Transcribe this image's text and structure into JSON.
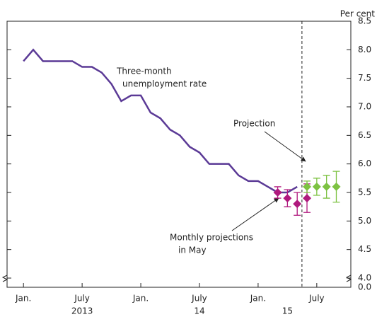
{
  "chart_data": {
    "type": "line",
    "y_axis_label": "Per cent",
    "xlim": [
      "2012-11-11",
      "2015-10-16"
    ],
    "ylim": [
      4.0,
      8.5
    ],
    "yticks": [
      {
        "value": 0,
        "label": "0.0"
      },
      {
        "value": 4,
        "label": "4.0"
      },
      4.5,
      {
        "value": 5,
        "label": "5.0"
      },
      5.5,
      {
        "value": 6,
        "label": "6.0"
      },
      6.5,
      {
        "value": 7,
        "label": "7.0"
      },
      7.5,
      {
        "value": 8,
        "label": "8.0"
      },
      8.5
    ],
    "xticks": [
      {
        "value": "2013-01",
        "label": "Jan."
      },
      {
        "value": "2013-07",
        "label": "July"
      },
      {
        "value": "2014-01",
        "label": "Jan."
      },
      {
        "value": "2014-07",
        "label": "July"
      },
      {
        "value": "2015-01",
        "label": "Jan."
      },
      {
        "value": "2015-07",
        "label": "July"
      }
    ],
    "year_labels": [
      {
        "value": "2013-07",
        "label": "2013"
      },
      {
        "value": "2014-07",
        "label": "14"
      },
      {
        "value": "2015-04",
        "label": "15"
      }
    ],
    "projection_start": "2015-05-16",
    "series": [
      {
        "color": "#5b3a96",
        "x": [
          "2013-01",
          "2013-02",
          "2013-03",
          "2013-04",
          "2013-05",
          "2013-06",
          "2013-07",
          "2013-08",
          "2013-09",
          "2013-10",
          "2013-11",
          "2013-12",
          "2014-01",
          "2014-02",
          "2014-03",
          "2014-04",
          "2014-05",
          "2014-06",
          "2014-07",
          "2014-08",
          "2014-09",
          "2014-10",
          "2014-11",
          "2014-12",
          "2015-01",
          "2015-02",
          "2015-03",
          "2015-04",
          "2015-05"
        ],
        "values": [
          7.8,
          8.0,
          7.8,
          7.8,
          7.8,
          7.8,
          7.7,
          7.7,
          7.6,
          7.4,
          7.1,
          7.2,
          7.2,
          6.9,
          6.8,
          6.6,
          6.5,
          6.3,
          6.2,
          6.0,
          6.0,
          6.0,
          5.8,
          5.7,
          5.7,
          5.6,
          5.5,
          5.5,
          5.6
        ]
      },
      {
        "color": "#b0197e",
        "marker": "diamond",
        "x": [
          "2015-03",
          "2015-04",
          "2015-05",
          "2015-06"
        ],
        "values": [
          5.5,
          5.4,
          5.3,
          5.4
        ],
        "errors": [
          0.1,
          0.15,
          0.2,
          0.25
        ]
      },
      {
        "color": "#7dc242",
        "marker": "diamond",
        "x": [
          "2015-06",
          "2015-07",
          "2015-08",
          "2015-09"
        ],
        "values": [
          5.6,
          5.6,
          5.6,
          5.6
        ],
        "errors": [
          0.1,
          0.15,
          0.2,
          0.27
        ]
      }
    ],
    "annotations": [
      {
        "lines": [
          "Three-month",
          "unemployment rate"
        ]
      },
      {
        "lines": [
          "Projection"
        ]
      },
      {
        "lines": [
          "Monthly projections",
          "in May"
        ]
      }
    ]
  }
}
